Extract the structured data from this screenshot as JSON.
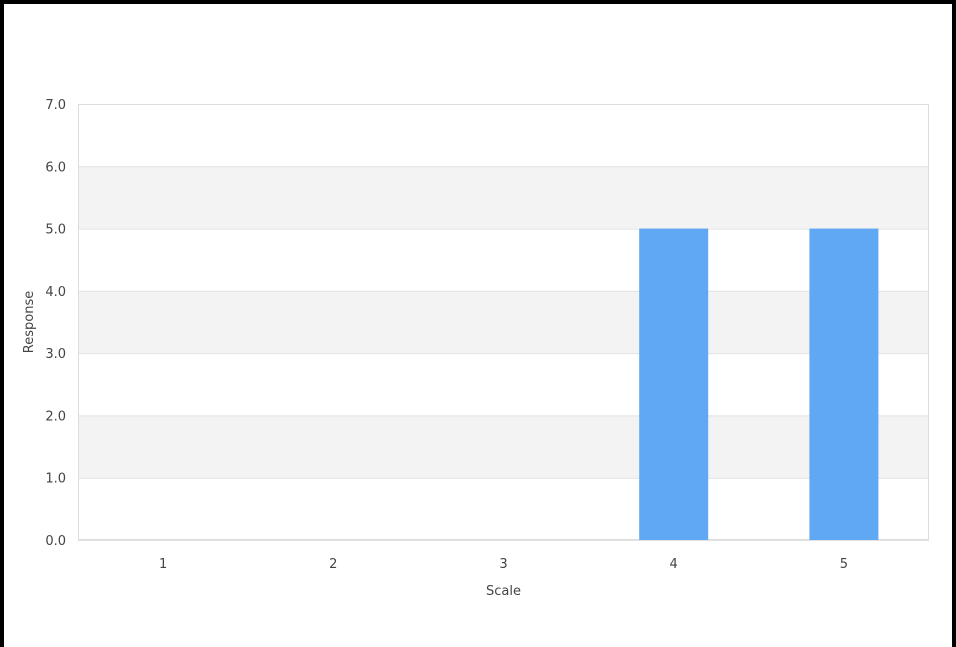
{
  "chart_data": {
    "type": "bar",
    "categories": [
      "1",
      "2",
      "3",
      "4",
      "5"
    ],
    "values": [
      0,
      0,
      0,
      5,
      5
    ],
    "xlabel": "Scale",
    "ylabel": "Response",
    "ylim": [
      0,
      7
    ],
    "yticks": [
      "0.0",
      "1.0",
      "2.0",
      "3.0",
      "4.0",
      "5.0",
      "6.0",
      "7.0"
    ],
    "grid": true,
    "legend": "none",
    "colors": {
      "bar": "#60a8f4",
      "band": "#f3f3f3",
      "gridline": "#e2e2e2",
      "text": "#444444"
    }
  }
}
